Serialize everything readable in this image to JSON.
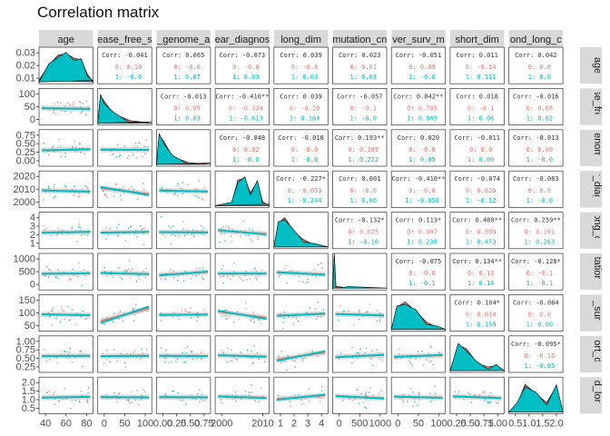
{
  "title": "Correlation matrix",
  "colors": {
    "strip_bg": "#d9d9d9",
    "panel_border": "#333333",
    "group1": "#f8766d",
    "group2": "#00bfc4",
    "overall_text": "#333333",
    "smooth_band": "#b3b3b3"
  },
  "chart_data": {
    "type": "scatter",
    "variables": [
      "age",
      "disease_free_surv",
      "fraction_genome_altered",
      "year_diagnosis",
      "long_dim",
      "mutation_count",
      "over_surv_months",
      "short_dim",
      "second_long_dim"
    ],
    "column_strip_labels": [
      "age",
      "ease_free_s",
      "_genome_a",
      "ear_diagnos",
      "long_dim",
      "mutation_cn",
      "ver_surv_m",
      "short_dim",
      "ond_long_c"
    ],
    "row_strip_labels": [
      "age",
      "se_free",
      "enome",
      "r_diagn",
      "ong_dir",
      "tation_",
      "_surv",
      "ort_dir",
      "d_long"
    ],
    "x_tick_labels": [
      [
        "40",
        "60",
        "80"
      ],
      [
        "0",
        "50",
        "100"
      ],
      [
        "0.00",
        "0.25",
        "0.50",
        "0.75"
      ],
      [
        "2000",
        "2010"
      ],
      [
        "1",
        "2",
        "3",
        "4"
      ],
      [
        "0",
        "500",
        "1000"
      ],
      [
        "0",
        "50",
        "100"
      ],
      [
        "0.25",
        "0.50",
        "0.75",
        "1.00"
      ],
      [
        "0.5",
        "1.0",
        "1.5",
        "2.0"
      ]
    ],
    "y_tick_labels": [
      [
        "0.01",
        "0.02",
        "0.03"
      ],
      [
        "0",
        "50",
        "100"
      ],
      [
        "0.00",
        "0.25",
        "0.50",
        "0.75"
      ],
      [
        "2000",
        "2010",
        "2020"
      ],
      [
        "1",
        "2",
        "3",
        "4"
      ],
      [
        "0",
        "500",
        "1000"
      ],
      [
        "50",
        "100",
        "150"
      ],
      [
        "0.25",
        "0.50",
        "0.75",
        "1.00"
      ],
      [
        "0.5",
        "1.0",
        "1.5",
        "2.0"
      ]
    ],
    "correlations": [
      {
        "row": 0,
        "col": 1,
        "overall": "Corr: -0.041",
        "g1": "0: 0.10",
        "g2": "1: -0.0"
      },
      {
        "row": 0,
        "col": 2,
        "overall": "Corr: 0.065",
        "g1": "0: -0.0",
        "g2": "1: 0.07"
      },
      {
        "row": 0,
        "col": 3,
        "overall": "Corr: -0.073",
        "g1": "0: -0.0",
        "g2": "1: 0.03"
      },
      {
        "row": 0,
        "col": 4,
        "overall": "Corr: 0.039",
        "g1": "0: -0.0",
        "g2": "1: 0.03"
      },
      {
        "row": 0,
        "col": 5,
        "overall": "Corr: 0.023",
        "g1": "0: 0.01",
        "g2": "1: 0.03"
      },
      {
        "row": 0,
        "col": 6,
        "overall": "Corr: -0.051",
        "g1": "0: 0.09",
        "g2": "1: -0.0"
      },
      {
        "row": 0,
        "col": 7,
        "overall": "Corr: 0.011",
        "g1": "0: -0.14",
        "g2": "1: 0.111"
      },
      {
        "row": 0,
        "col": 8,
        "overall": "Corr: 0.042",
        "g1": "0: 0.0",
        "g2": "1: 0.0"
      },
      {
        "row": 1,
        "col": 2,
        "overall": "Corr: -0.013",
        "g1": "0: 0.05",
        "g2": "1: 0.03"
      },
      {
        "row": 1,
        "col": 3,
        "overall": "Corr: -0.410**",
        "g1": "0: -0.324",
        "g2": "1: -0.613"
      },
      {
        "row": 1,
        "col": 4,
        "overall": "Corr: 0.039",
        "g1": "0: -0.28",
        "g2": "1: 0.164"
      },
      {
        "row": 1,
        "col": 5,
        "overall": "Corr: -0.057",
        "g1": "0: -0.1",
        "g2": "1: -0.0"
      },
      {
        "row": 1,
        "col": 6,
        "overall": "Corr: 0.842**",
        "g1": "0: 0.705",
        "g2": "1: 0.849"
      },
      {
        "row": 1,
        "col": 7,
        "overall": "Corr: 0.018",
        "g1": "0: -0.1",
        "g2": "1: 0.06"
      },
      {
        "row": 1,
        "col": 8,
        "overall": "Corr: -0.016",
        "g1": "0: 0.06",
        "g2": "1: 0.02"
      },
      {
        "row": 2,
        "col": 3,
        "overall": "Corr: -0.048",
        "g1": "0: 0.02",
        "g2": "1: -0.0"
      },
      {
        "row": 2,
        "col": 4,
        "overall": "Corr: -0.018",
        "g1": "0: -0.0",
        "g2": "1: -0.0"
      },
      {
        "row": 2,
        "col": 5,
        "overall": "Corr: 0.193**",
        "g1": "0: 0.109",
        "g2": "1: 0.222"
      },
      {
        "row": 2,
        "col": 6,
        "overall": "Corr: 0.020",
        "g1": "0: -0.0",
        "g2": "1: 0.05"
      },
      {
        "row": 2,
        "col": 7,
        "overall": "Corr: -0.011",
        "g1": "0: 0.0",
        "g2": "1: 0.00"
      },
      {
        "row": 2,
        "col": 8,
        "overall": "Corr: -0.013",
        "g1": "0: 0.00",
        "g2": "1: -0.0"
      },
      {
        "row": 3,
        "col": 4,
        "overall": "Corr: -0.227*",
        "g1": "0: -0.053",
        "g2": "1: -0.244"
      },
      {
        "row": 3,
        "col": 5,
        "overall": "Corr: 0.001",
        "g1": "0: -0.0",
        "g2": "1: 0.00"
      },
      {
        "row": 3,
        "col": 6,
        "overall": "Corr: -0.410**",
        "g1": "0: -0.0",
        "g2": "1: -0.650"
      },
      {
        "row": 3,
        "col": 7,
        "overall": "Corr: -0.074",
        "g1": "0: 0.026",
        "g2": "1: -0.12"
      },
      {
        "row": 3,
        "col": 8,
        "overall": "Corr: -0.083",
        "g1": "0: 0.0",
        "g2": "1: -0.0"
      },
      {
        "row": 4,
        "col": 5,
        "overall": "Corr: -0.132*",
        "g1": "0: 0.025",
        "g2": "1: -0.16"
      },
      {
        "row": 4,
        "col": 6,
        "overall": "Corr: 0.113*",
        "g1": "0: 0.047",
        "g2": "1: 0.238"
      },
      {
        "row": 4,
        "col": 7,
        "overall": "Corr: 0.480**",
        "g1": "0: 0.508",
        "g2": "1: 0.473"
      },
      {
        "row": 4,
        "col": 8,
        "overall": "Corr: 0.259**",
        "g1": "0: 0.191",
        "g2": "1: 0.263"
      },
      {
        "row": 5,
        "col": 6,
        "overall": "Corr: -0.075",
        "g1": "0: -0.0",
        "g2": "1: -0.1"
      },
      {
        "row": 5,
        "col": 7,
        "overall": "Corr: 0.134**",
        "g1": "0: 0.13",
        "g2": "1: 0.14"
      },
      {
        "row": 5,
        "col": 8,
        "overall": "Corr: -0.128*",
        "g1": "0: -0.1",
        "g2": "1: -0.1"
      },
      {
        "row": 6,
        "col": 7,
        "overall": "Corr: 0.104*",
        "g1": "0: 0.014",
        "g2": "1: 0.159"
      },
      {
        "row": 6,
        "col": 8,
        "overall": "Corr: -0.064",
        "g1": "0: 0.0",
        "g2": "1: 0.00"
      },
      {
        "row": 7,
        "col": 8,
        "overall": "Corr: -0.095*",
        "g1": "0: -0.16",
        "g2": "1: -0.05"
      }
    ],
    "grid": false,
    "legend": "none"
  }
}
